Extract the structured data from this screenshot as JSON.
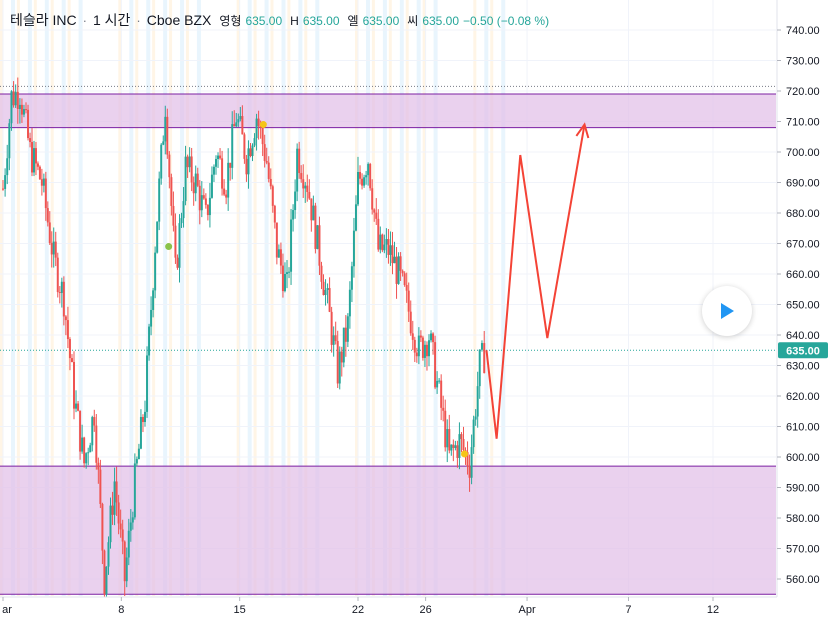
{
  "legend": {
    "symbol": "테슬라 INC",
    "interval": "1 시간",
    "exchange": "Cboe BZX",
    "open_label": "영형",
    "open": "635.00",
    "high_label": "H",
    "high": "635.00",
    "low_label": "엘",
    "low": "635.00",
    "close_label": "씨",
    "close": "635.00",
    "change": "−0.50 (−0.08 %)"
  },
  "last_price_tag": "635.00",
  "colors": {
    "up": "#26a69a",
    "down": "#ef5350",
    "zone_fill": "#e1bee7",
    "zone_line": "#7b1fa2",
    "projection": "#f44336",
    "marker": "#f5c518",
    "marker_green": "#8bc34a",
    "price_tag_bg": "#26a69a"
  },
  "icons": {
    "play": "play-icon"
  },
  "chart_data": {
    "type": "candlestick",
    "y_axis": {
      "min": 555,
      "max": 745,
      "ticks": [
        560,
        570,
        580,
        590,
        600,
        610,
        620,
        630,
        640,
        650,
        660,
        670,
        680,
        690,
        700,
        710,
        720,
        730,
        740
      ]
    },
    "x_axis": {
      "ticks": [
        {
          "label": "ar",
          "day": 1
        },
        {
          "label": "8",
          "day": 8
        },
        {
          "label": "15",
          "day": 15
        },
        {
          "label": "22",
          "day": 22
        },
        {
          "label": "26",
          "day": 26
        },
        {
          "label": "Apr",
          "day": 32
        },
        {
          "label": "7",
          "day": 38
        },
        {
          "label": "12",
          "day": 43
        }
      ],
      "day_min": 0.6,
      "day_max": 47
    },
    "price_path": [
      [
        1,
        688
      ],
      [
        1.5,
        718
      ],
      [
        2,
        720
      ],
      [
        2.6,
        700
      ],
      [
        3.3,
        690
      ],
      [
        4,
        665
      ],
      [
        4.6,
        652
      ],
      [
        5.2,
        620
      ],
      [
        5.8,
        598
      ],
      [
        6.4,
        615
      ],
      [
        7,
        560
      ],
      [
        7.6,
        592
      ],
      [
        8.2,
        560
      ],
      [
        8.8,
        592
      ],
      [
        9.4,
        618
      ],
      [
        10,
        670
      ],
      [
        10.6,
        716
      ],
      [
        11.2,
        660
      ],
      [
        11.8,
        695
      ],
      [
        12.4,
        690
      ],
      [
        13,
        678
      ],
      [
        13.6,
        700
      ],
      [
        14.2,
        690
      ],
      [
        14.8,
        712
      ],
      [
        15.4,
        698
      ],
      [
        16,
        712
      ],
      [
        16.6,
        697
      ],
      [
        17.2,
        668
      ],
      [
        17.8,
        655
      ],
      [
        18.4,
        700
      ],
      [
        19,
        690
      ],
      [
        19.6,
        670
      ],
      [
        20.2,
        650
      ],
      [
        20.8,
        628
      ],
      [
        21.4,
        643
      ],
      [
        22,
        690
      ],
      [
        22.6,
        698
      ],
      [
        23.2,
        668
      ],
      [
        23.8,
        668
      ],
      [
        24.4,
        660
      ],
      [
        25,
        648
      ],
      [
        25.6,
        635
      ],
      [
        26.2,
        640
      ],
      [
        26.8,
        620
      ],
      [
        27.4,
        600
      ],
      [
        28,
        605
      ],
      [
        28.6,
        598
      ],
      [
        29.2,
        630
      ],
      [
        29.6,
        635
      ]
    ],
    "zones": [
      {
        "from": 708,
        "to": 719
      },
      {
        "from": 555,
        "to": 597
      }
    ],
    "horizontal_lines": [
      {
        "value": 721.5,
        "style": "dotted",
        "color": "#787b86"
      },
      {
        "value": 635,
        "style": "dotted",
        "color": "#26a69a"
      }
    ],
    "projection": [
      [
        29.6,
        635
      ],
      [
        30.2,
        606
      ],
      [
        31.6,
        699
      ],
      [
        33.2,
        639
      ],
      [
        35.4,
        709
      ]
    ],
    "markers": [
      {
        "day": 16.4,
        "value": 709,
        "color": "#f5c518"
      },
      {
        "day": 28.3,
        "value": 601,
        "color": "#f5c518"
      },
      {
        "day": 10.8,
        "value": 669,
        "color": "#8bc34a"
      }
    ]
  }
}
